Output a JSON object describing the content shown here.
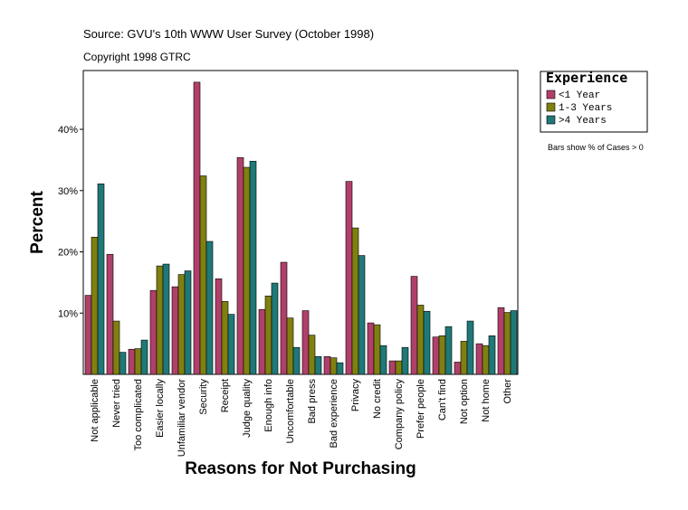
{
  "chart_data": {
    "type": "bar",
    "title": "Source: GVU's 10th WWW User Survey (October 1998)",
    "subtitle": "Copyright 1998 GTRC",
    "note": "Bars show % of Cases > 0",
    "y_label": "Percent",
    "x_label": "Reasons for Not Purchasing",
    "legend_title": "Experience",
    "categories": [
      "Not applicable",
      "Never tried",
      "Too complicated",
      "Easier locally",
      "Unfamiliar vendor",
      "Security",
      "Receipt",
      "Judge quality",
      "Enough info",
      "Uncomfortable",
      "Bad press",
      "Bad experience",
      "Privacy",
      "No credit",
      "Company policy",
      "Prefer people",
      "Can't find",
      "Not option",
      "Not home",
      "Other"
    ],
    "series": [
      {
        "name": "<1 Year",
        "color": "#b0406a",
        "values": [
          12.9,
          19.6,
          4.1,
          13.7,
          14.3,
          47.7,
          15.6,
          35.4,
          10.6,
          18.3,
          10.4,
          2.9,
          31.5,
          8.4,
          2.2,
          16.0,
          6.1,
          2.0,
          5.0,
          10.9
        ]
      },
      {
        "name": "1-3 Years",
        "color": "#808010",
        "values": [
          22.4,
          8.7,
          4.2,
          17.7,
          16.3,
          32.4,
          11.9,
          33.8,
          12.8,
          9.2,
          6.4,
          2.7,
          23.9,
          8.1,
          2.2,
          11.3,
          6.3,
          5.4,
          4.7,
          10.1
        ]
      },
      {
        "name": ">4 Years",
        "color": "#207878",
        "values": [
          31.1,
          3.6,
          5.6,
          18.0,
          16.9,
          21.7,
          9.8,
          34.8,
          14.9,
          4.4,
          2.9,
          1.9,
          19.4,
          4.7,
          4.4,
          10.3,
          7.8,
          8.7,
          6.3,
          10.4
        ]
      }
    ],
    "ylim": [
      0,
      49.6
    ],
    "yticks": [
      {
        "value": 10,
        "label": "10%"
      },
      {
        "value": 20,
        "label": "20%"
      },
      {
        "value": 30,
        "label": "30%"
      },
      {
        "value": 40,
        "label": "40%"
      }
    ],
    "grid": false
  }
}
